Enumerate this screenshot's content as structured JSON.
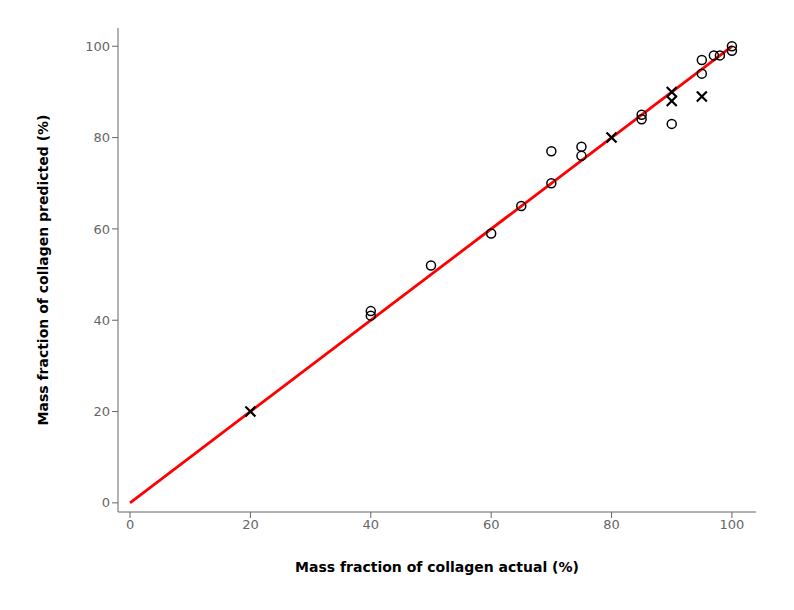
{
  "chart_data": {
    "type": "scatter",
    "xlabel": "Mass fraction of collagen actual (%)",
    "ylabel": "Mass fraction of collagen predicted (%)",
    "xlim": [
      -2,
      104
    ],
    "ylim": [
      -2,
      104
    ],
    "xticks": [
      0,
      20,
      40,
      60,
      80,
      100
    ],
    "yticks": [
      0,
      20,
      40,
      60,
      80,
      100
    ],
    "grid": false,
    "series": [
      {
        "type": "line",
        "line_style": "solid",
        "color": "#ff0000",
        "x": [
          0,
          100
        ],
        "values": [
          0,
          100
        ]
      },
      {
        "type": "scatter",
        "marker": "circle",
        "color": "#000000",
        "x": [
          40,
          40,
          50,
          60,
          65,
          70,
          70,
          75,
          75,
          85,
          85,
          90,
          95,
          95,
          97,
          98,
          100,
          100
        ],
        "values": [
          41,
          42,
          52,
          59,
          65,
          70,
          77,
          76,
          78,
          84,
          85,
          83,
          94,
          97,
          98,
          98,
          100,
          99
        ]
      },
      {
        "type": "scatter",
        "marker": "x",
        "color": "#000000",
        "x": [
          20,
          80,
          90,
          90,
          95
        ],
        "values": [
          20,
          80,
          88,
          90,
          89
        ]
      }
    ]
  }
}
